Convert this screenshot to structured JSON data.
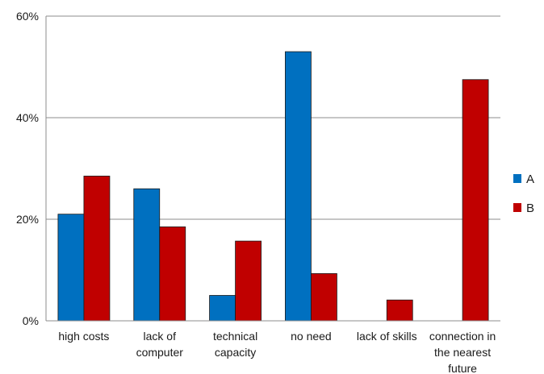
{
  "chart_data": {
    "type": "bar",
    "categories": [
      [
        "high costs"
      ],
      [
        "lack of",
        "computer"
      ],
      [
        "technical",
        "capacity"
      ],
      [
        "no need"
      ],
      [
        "lack of skills"
      ],
      [
        "connection in",
        "the nearest",
        "future"
      ]
    ],
    "series": [
      {
        "name": "A",
        "color": "#0070C0",
        "values": [
          21,
          26,
          5,
          53,
          0,
          0
        ]
      },
      {
        "name": "B",
        "color": "#C00000",
        "values": [
          28.5,
          18.5,
          15.7,
          9.3,
          4.1,
          47.5
        ]
      }
    ],
    "y_ticks": [
      "0%",
      "20%",
      "40%",
      "60%"
    ],
    "ylim": [
      0,
      60
    ],
    "grid": true,
    "legend_position": "right"
  }
}
